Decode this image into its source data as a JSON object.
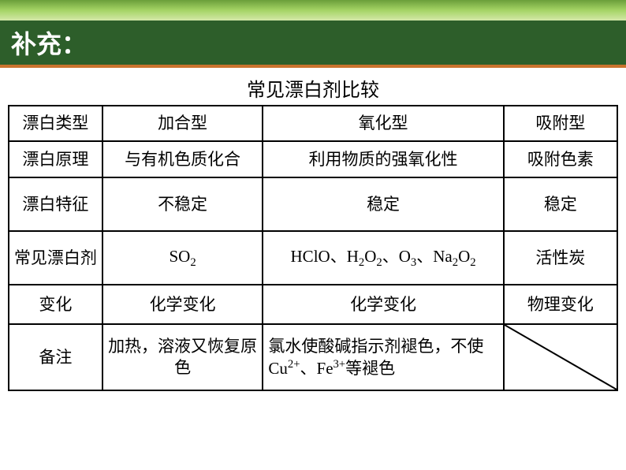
{
  "header": {
    "title": "补充："
  },
  "table": {
    "title": "常见漂白剂比较",
    "colors": {
      "top_gradient_start": "#6a9e3a",
      "top_gradient_end": "#d4e8a8",
      "header_bg": "#2d5e2a",
      "header_text": "#ffffff",
      "header_border": "#c9732e",
      "cell_border": "#000000",
      "cell_text": "#000000"
    },
    "headers": [
      "漂白类型",
      "加合型",
      "氧化型",
      "吸附型"
    ],
    "rows": [
      {
        "label": "漂白原理",
        "cells": [
          "与有机色质化合",
          "利用物质的强氧化性",
          "吸附色素"
        ]
      },
      {
        "label": "漂白特征",
        "cells": [
          "不稳定",
          "稳定",
          "稳定"
        ]
      },
      {
        "label": "常见漂白剂",
        "cells_html": [
          "SO<sub>2</sub>",
          "HClO、H<sub>2</sub>O<sub>2</sub>、O<sub>3</sub>、Na<sub>2</sub>O<sub>2</sub>",
          "活性炭"
        ]
      },
      {
        "label": "变化",
        "cells": [
          "化学变化",
          "化学变化",
          "物理变化"
        ]
      },
      {
        "label": "备注",
        "cells_html": [
          "加热，溶液又恢复原色",
          "氯水使酸碱指示剂褪色，不使Cu<sup>2+</sup>、Fe<sup>3+</sup>等褪色",
          ""
        ]
      }
    ]
  }
}
